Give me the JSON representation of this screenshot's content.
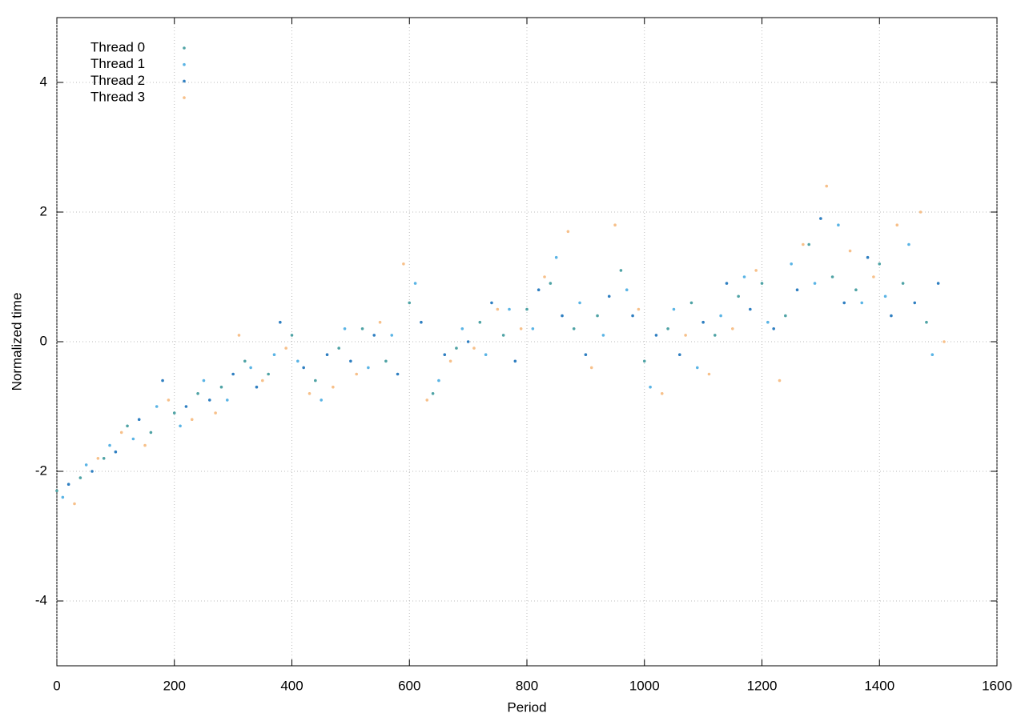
{
  "chart_data": {
    "type": "scatter",
    "xlabel": "Period",
    "ylabel": "Normalized time",
    "xlim": [
      0,
      1600
    ],
    "ylim": [
      -5,
      5
    ],
    "xticks": [
      0,
      200,
      400,
      600,
      800,
      1000,
      1200,
      1400,
      1600
    ],
    "yticks": [
      -4,
      -2,
      0,
      2,
      4
    ],
    "grid": true,
    "legend": "top-left",
    "series": [
      {
        "name": "Thread 0",
        "color": "#4fa3a5",
        "x": [
          0,
          40,
          80,
          120,
          160,
          200,
          240,
          280,
          320,
          360,
          400,
          440,
          480,
          520,
          560,
          600,
          640,
          680,
          720,
          760,
          800,
          840,
          880,
          920,
          960,
          1000,
          1040,
          1080,
          1120,
          1160,
          1200,
          1240,
          1280,
          1320,
          1360,
          1400,
          1440,
          1480
        ],
        "values": [
          -2.3,
          -2.1,
          -1.8,
          -1.3,
          -1.4,
          -1.1,
          -0.8,
          -0.7,
          -0.3,
          -0.5,
          0.1,
          -0.6,
          -0.1,
          0.2,
          -0.3,
          0.6,
          -0.8,
          -0.1,
          0.3,
          0.1,
          0.5,
          0.9,
          0.2,
          0.4,
          1.1,
          -0.3,
          0.2,
          0.6,
          0.1,
          0.7,
          0.9,
          0.4,
          1.5,
          1.0,
          0.8,
          1.2,
          0.9,
          0.3
        ]
      },
      {
        "name": "Thread 1",
        "color": "#5ab4e5",
        "x": [
          10,
          50,
          90,
          130,
          170,
          210,
          250,
          290,
          330,
          370,
          410,
          450,
          490,
          530,
          570,
          610,
          650,
          690,
          730,
          770,
          810,
          850,
          890,
          930,
          970,
          1010,
          1050,
          1090,
          1130,
          1170,
          1210,
          1250,
          1290,
          1330,
          1370,
          1410,
          1450,
          1490
        ],
        "values": [
          -2.4,
          -1.9,
          -1.6,
          -1.5,
          -1.0,
          -1.3,
          -0.6,
          -0.9,
          -0.4,
          -0.2,
          -0.3,
          -0.9,
          0.2,
          -0.4,
          0.1,
          0.9,
          -0.6,
          0.2,
          -0.2,
          0.5,
          0.2,
          1.3,
          0.6,
          0.1,
          0.8,
          -0.7,
          0.5,
          -0.4,
          0.4,
          1.0,
          0.3,
          1.2,
          0.9,
          1.8,
          0.6,
          0.7,
          1.5,
          -0.2
        ]
      },
      {
        "name": "Thread 2",
        "color": "#2f7fc1",
        "x": [
          20,
          60,
          100,
          140,
          180,
          220,
          260,
          300,
          340,
          380,
          420,
          460,
          500,
          540,
          580,
          620,
          660,
          700,
          740,
          780,
          820,
          860,
          900,
          940,
          980,
          1020,
          1060,
          1100,
          1140,
          1180,
          1220,
          1260,
          1300,
          1340,
          1380,
          1420,
          1460,
          1500
        ],
        "values": [
          -2.2,
          -2.0,
          -1.7,
          -1.2,
          -0.6,
          -1.0,
          -0.9,
          -0.5,
          -0.7,
          0.3,
          -0.4,
          -0.2,
          -0.3,
          0.1,
          -0.5,
          0.3,
          -0.2,
          0.0,
          0.6,
          -0.3,
          0.8,
          0.4,
          -0.2,
          0.7,
          0.4,
          0.1,
          -0.2,
          0.3,
          0.9,
          0.5,
          0.2,
          0.8,
          1.9,
          0.6,
          1.3,
          0.4,
          0.6,
          0.9
        ]
      },
      {
        "name": "Thread 3",
        "color": "#f7c08a",
        "x": [
          30,
          70,
          110,
          150,
          190,
          230,
          270,
          310,
          350,
          390,
          430,
          470,
          510,
          550,
          590,
          630,
          670,
          710,
          750,
          790,
          830,
          870,
          910,
          950,
          990,
          1030,
          1070,
          1110,
          1150,
          1190,
          1230,
          1270,
          1310,
          1350,
          1390,
          1430,
          1470,
          1510
        ],
        "values": [
          -2.5,
          -1.8,
          -1.4,
          -1.6,
          -0.9,
          -1.2,
          -1.1,
          0.1,
          -0.6,
          -0.1,
          -0.8,
          -0.7,
          -0.5,
          0.3,
          1.2,
          -0.9,
          -0.3,
          -0.1,
          0.5,
          0.2,
          1.0,
          1.7,
          -0.4,
          1.8,
          0.5,
          -0.8,
          0.1,
          -0.5,
          0.2,
          1.1,
          -0.6,
          1.5,
          2.4,
          1.4,
          1.0,
          1.8,
          2.0,
          0.0
        ]
      }
    ]
  }
}
